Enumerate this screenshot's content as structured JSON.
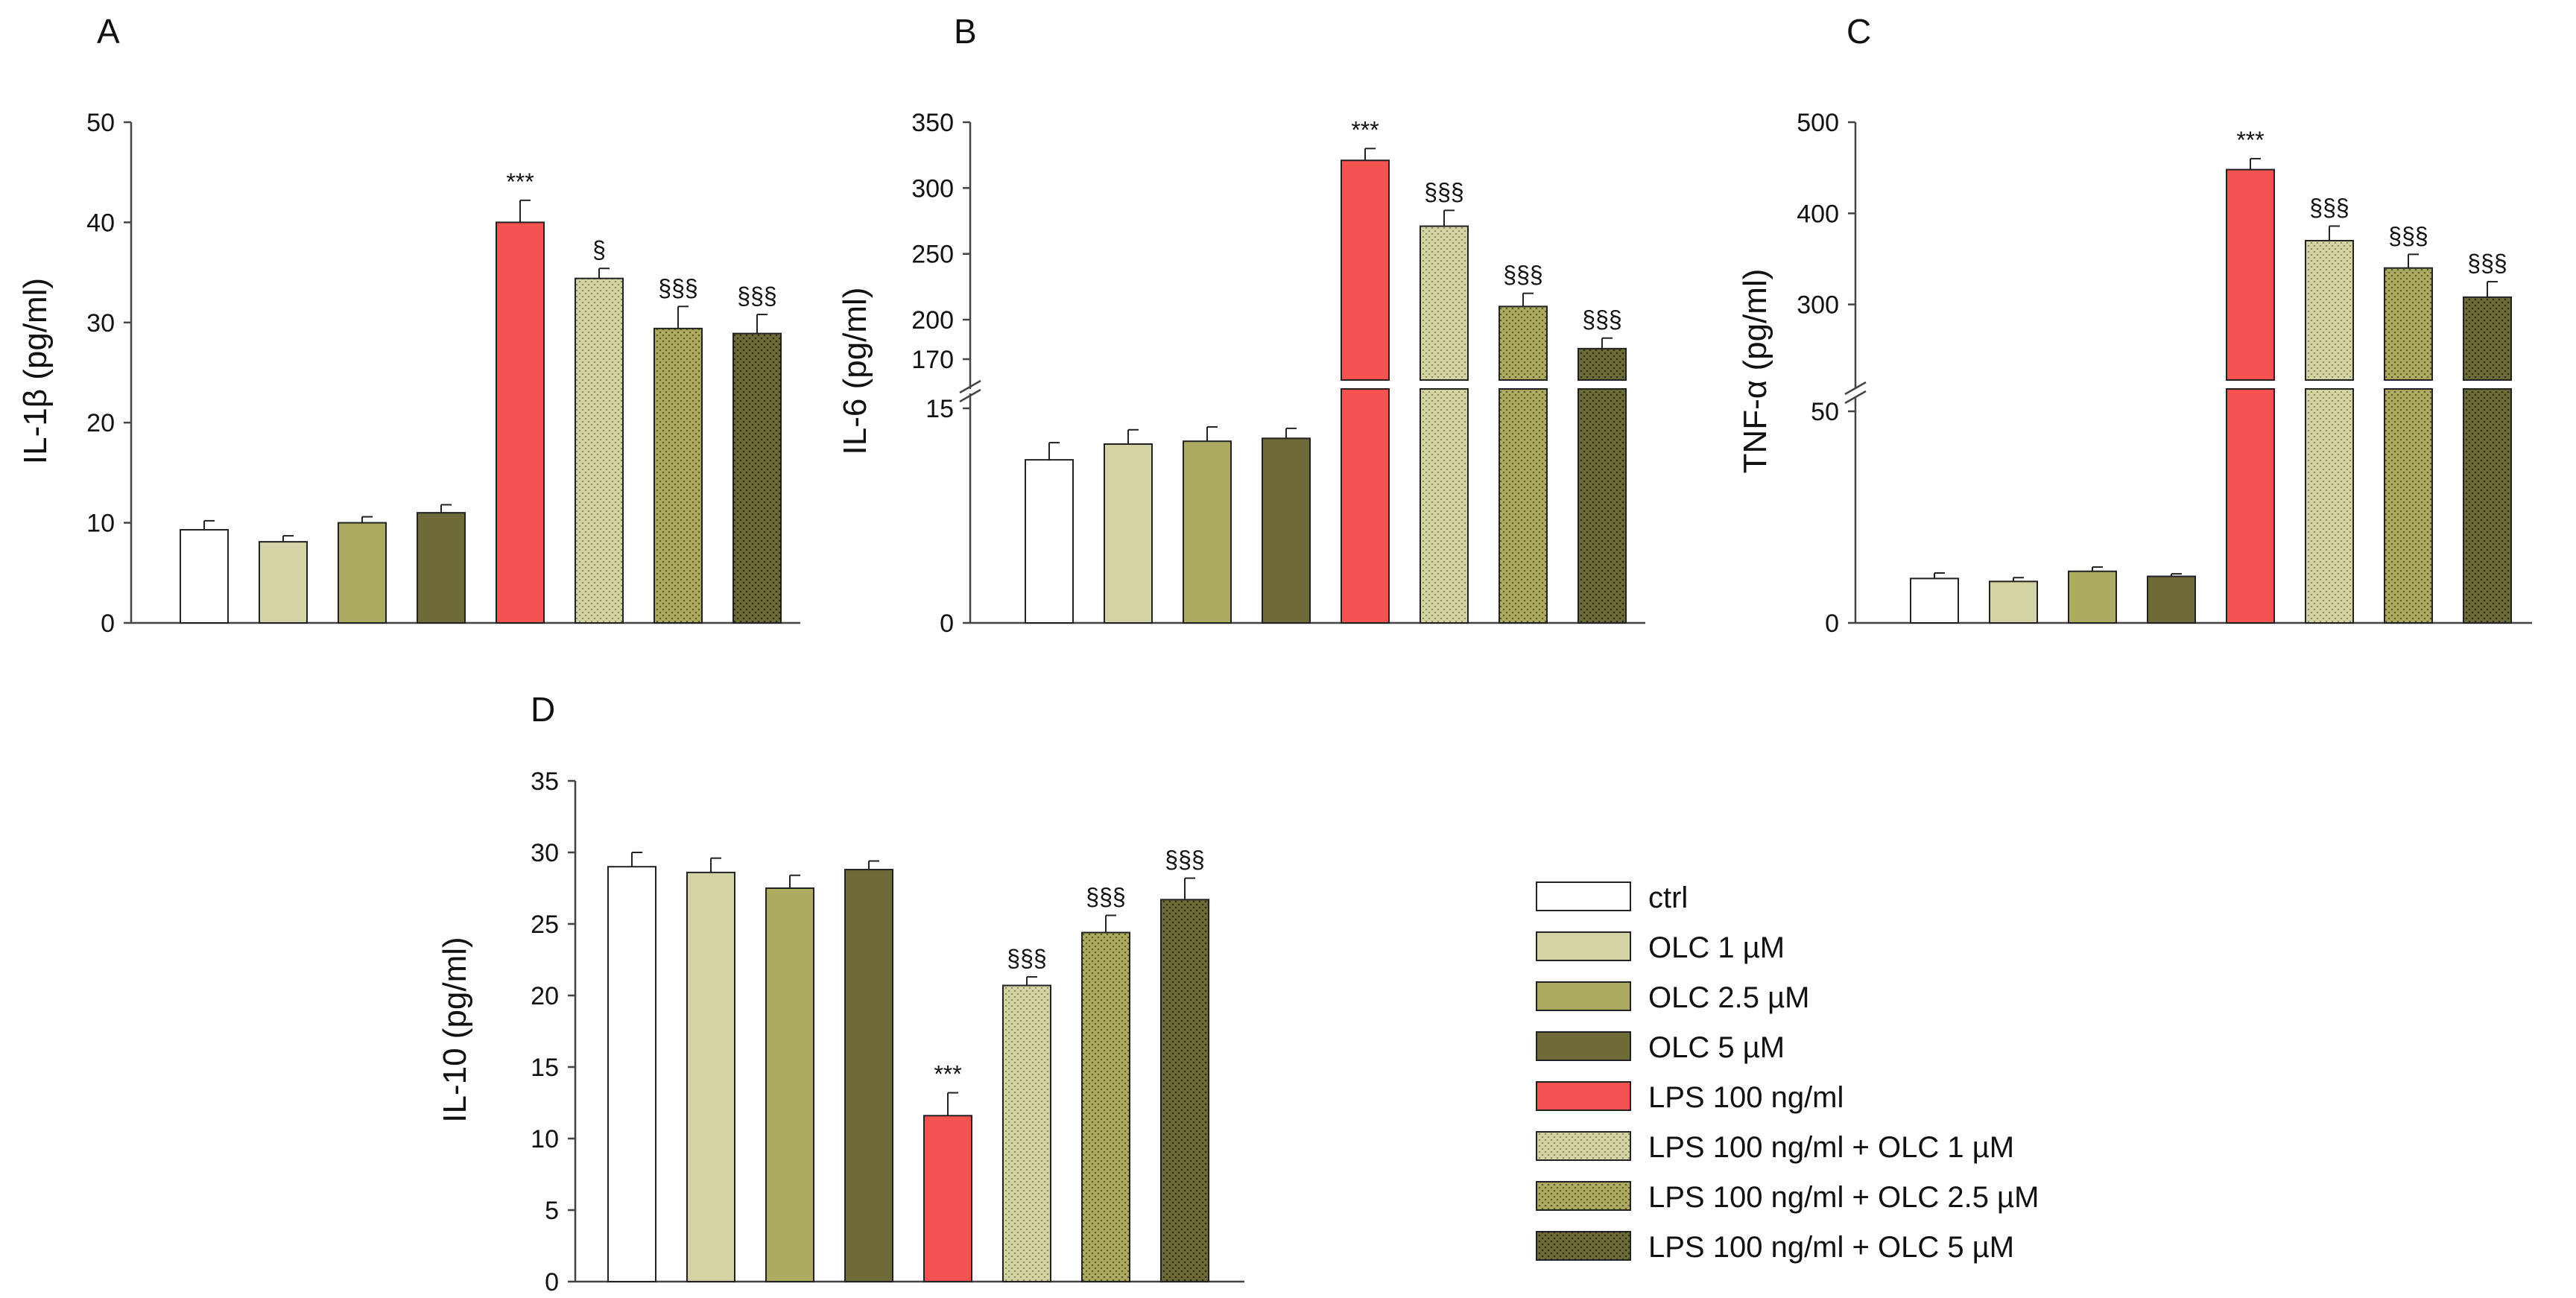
{
  "chart_data": [
    {
      "type": "bar",
      "panel": "A",
      "ylabel": "IL-1β (pg/ml)",
      "ylim": [
        0,
        50
      ],
      "yticks": [
        0,
        10,
        20,
        30,
        40,
        50
      ],
      "values": [
        9.3,
        8.1,
        10.0,
        11.0,
        40.0,
        34.4,
        29.4,
        28.9
      ],
      "errors": [
        0.9,
        0.6,
        0.6,
        0.8,
        2.2,
        1.0,
        2.2,
        1.9
      ],
      "annotations": [
        "",
        "",
        "",
        "",
        "***",
        "§",
        "§§§",
        "§§§"
      ],
      "broken_axis": false
    },
    {
      "type": "bar",
      "panel": "B",
      "ylabel": "IL-6 (pg/ml)",
      "broken_axis": true,
      "lower_ylim": [
        0,
        15
      ],
      "lower_yticks": [
        0,
        15
      ],
      "upper_ylim": [
        170,
        350
      ],
      "upper_yticks": [
        170,
        200,
        250,
        300,
        350
      ],
      "values": [
        11.4,
        12.5,
        12.7,
        12.9,
        321,
        271,
        210,
        178
      ],
      "errors": [
        1.2,
        1.0,
        1.0,
        0.7,
        9,
        12,
        10,
        8
      ],
      "annotations": [
        "",
        "",
        "",
        "",
        "***",
        "§§§",
        "§§§",
        "§§§"
      ]
    },
    {
      "type": "bar",
      "panel": "C",
      "ylabel": "TNF-α (pg/ml)",
      "broken_axis": true,
      "lower_ylim": [
        0,
        50
      ],
      "lower_yticks": [
        0,
        50
      ],
      "upper_ylim": [
        240,
        500
      ],
      "upper_yticks": [
        300,
        400,
        500
      ],
      "values": [
        10.5,
        9.8,
        12.2,
        11.0,
        448,
        370,
        340,
        308
      ],
      "errors": [
        1.3,
        0.9,
        1.0,
        0.6,
        12,
        16,
        15,
        17
      ],
      "annotations": [
        "",
        "",
        "",
        "",
        "***",
        "§§§",
        "§§§",
        "§§§"
      ]
    },
    {
      "type": "bar",
      "panel": "D",
      "ylabel": "IL-10 (pg/ml)",
      "ylim": [
        0,
        35
      ],
      "yticks": [
        0,
        5,
        10,
        15,
        20,
        25,
        30,
        35
      ],
      "values": [
        29.0,
        28.6,
        27.5,
        28.8,
        11.6,
        20.7,
        24.4,
        26.7
      ],
      "errors": [
        1.0,
        1.0,
        0.9,
        0.6,
        1.6,
        0.6,
        1.2,
        1.5
      ],
      "annotations": [
        "",
        "",
        "",
        "",
        "***",
        "§§§",
        "§§§",
        "§§§"
      ],
      "broken_axis": false
    }
  ],
  "legend": [
    {
      "label": "ctrl",
      "color": "#ffffff",
      "pattern": "none"
    },
    {
      "label": "OLC 1 µM",
      "color": "#d4d3a6",
      "pattern": "none"
    },
    {
      "label": "OLC 2.5 µM",
      "color": "#adab62",
      "pattern": "none"
    },
    {
      "label": "OLC 5 µM",
      "color": "#6d6b37",
      "pattern": "none"
    },
    {
      "label": "LPS 100 ng/ml",
      "color": "#f55252",
      "pattern": "none"
    },
    {
      "label": "LPS 100 ng/ml + OLC 1 µM",
      "color": "#d4d3a6",
      "pattern": "dots"
    },
    {
      "label": "LPS 100 ng/ml + OLC 2.5 µM",
      "color": "#adab62",
      "pattern": "dots"
    },
    {
      "label": "LPS 100 ng/ml + OLC 5 µM",
      "color": "#6d6b37",
      "pattern": "dots"
    }
  ]
}
